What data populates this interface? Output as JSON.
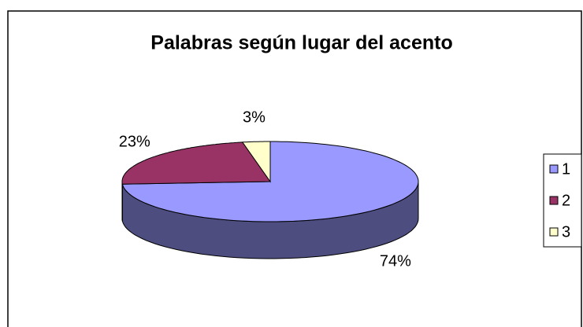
{
  "chart_data": {
    "type": "pie",
    "title": "Palabras según lugar del acento",
    "categories": [
      "1",
      "2",
      "3"
    ],
    "values": [
      74,
      23,
      3
    ],
    "value_labels": [
      "74%",
      "23%",
      "3%"
    ],
    "colors": [
      "#9999ff",
      "#993366",
      "#ffffcc"
    ],
    "legend": "right"
  }
}
